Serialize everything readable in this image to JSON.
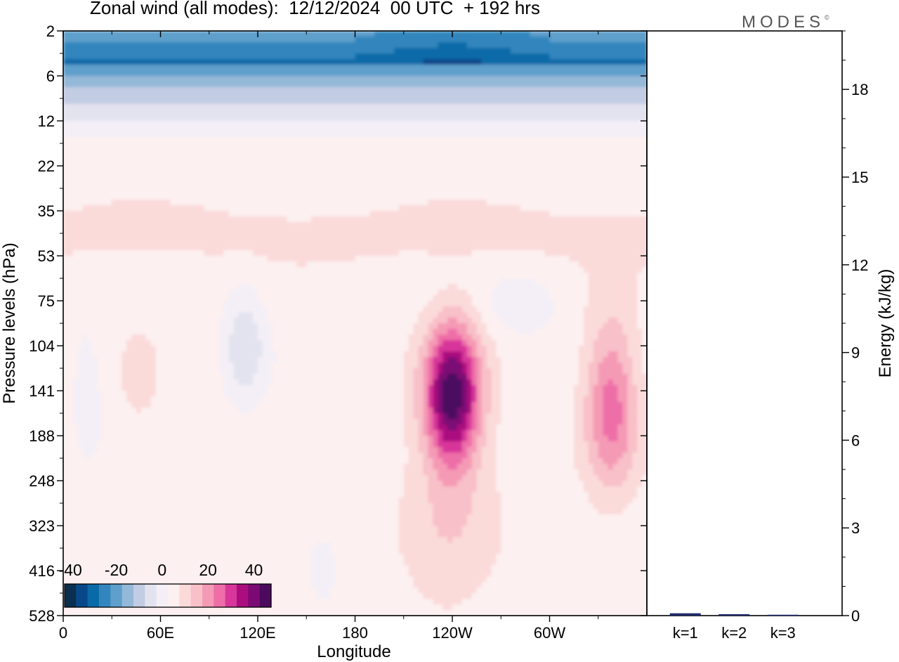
{
  "header": {
    "title": "Zonal wind (all modes):  12/12/2024  00 UTC  + 192 hrs",
    "logo_text": "MODES",
    "logo_mark": "©"
  },
  "chart_data": [
    {
      "type": "heatmap",
      "title": "Zonal wind (all modes):  12/12/2024  00 UTC  + 192 hrs",
      "xlabel": "Longitude",
      "ylabel": "Pressure levels (hPa)",
      "x_ticks": [
        "0",
        "60E",
        "120E",
        "180",
        "120W",
        "60W"
      ],
      "x_tick_degrees": [
        0,
        60,
        120,
        180,
        240,
        300
      ],
      "xlim": [
        0,
        360
      ],
      "y_ticks": [
        "2",
        "6",
        "12",
        "22",
        "35",
        "53",
        "75",
        "104",
        "141",
        "188",
        "248",
        "323",
        "416",
        "528"
      ],
      "y_scale": "pressure levels (top to bottom)",
      "colorbar": {
        "tick_labels": [
          "-40",
          "-20",
          "0",
          "20",
          "40"
        ],
        "tick_values": [
          -40,
          -20,
          0,
          20,
          40
        ],
        "levels": [
          -45,
          -40,
          -35,
          -30,
          -25,
          -20,
          -15,
          -10,
          -5,
          0,
          5,
          10,
          15,
          20,
          25,
          30,
          35,
          40,
          45
        ],
        "colors": [
          "#0b2f4f",
          "#08488a",
          "#0a6aa8",
          "#3386bd",
          "#5e9fcb",
          "#94b8d8",
          "#c2cce3",
          "#e3e3ef",
          "#f4eff6",
          "#fdf0f0",
          "#fbdada",
          "#f8c0c8",
          "#f59ab5",
          "#ee6ea8",
          "#d8369a",
          "#ab0d7f",
          "#7c0a74",
          "#4c0a5e"
        ],
        "placement": "bottom-left inset"
      },
      "features": [
        {
          "lon": 38,
          "level": "6",
          "value": -35
        },
        {
          "lon": 100,
          "level": "6",
          "value": -30
        },
        {
          "lon": 230,
          "level": "6",
          "value": -38
        },
        {
          "lon": 320,
          "level": "6",
          "value": -40
        },
        {
          "lon": 240,
          "level": "141",
          "value": 40
        },
        {
          "lon": 340,
          "level": "141",
          "value": 22
        },
        {
          "lon": 115,
          "level": "104",
          "value": -12
        },
        {
          "lon": 45,
          "level": "141",
          "value": 8
        },
        {
          "lon": 110,
          "level": "35",
          "value": 8
        },
        {
          "lon": 285,
          "level": "75",
          "value": -6
        }
      ]
    },
    {
      "type": "bar",
      "ylabel": "Energy (kJ/kg)",
      "categories": [
        "k=1",
        "k=2",
        "k=3"
      ],
      "values": [
        0.08,
        0.05,
        0.03
      ],
      "ylim": [
        0,
        20
      ],
      "y_ticks": [
        0,
        3,
        6,
        9,
        12,
        15,
        18
      ],
      "bar_color": "#1f2a6b"
    }
  ]
}
